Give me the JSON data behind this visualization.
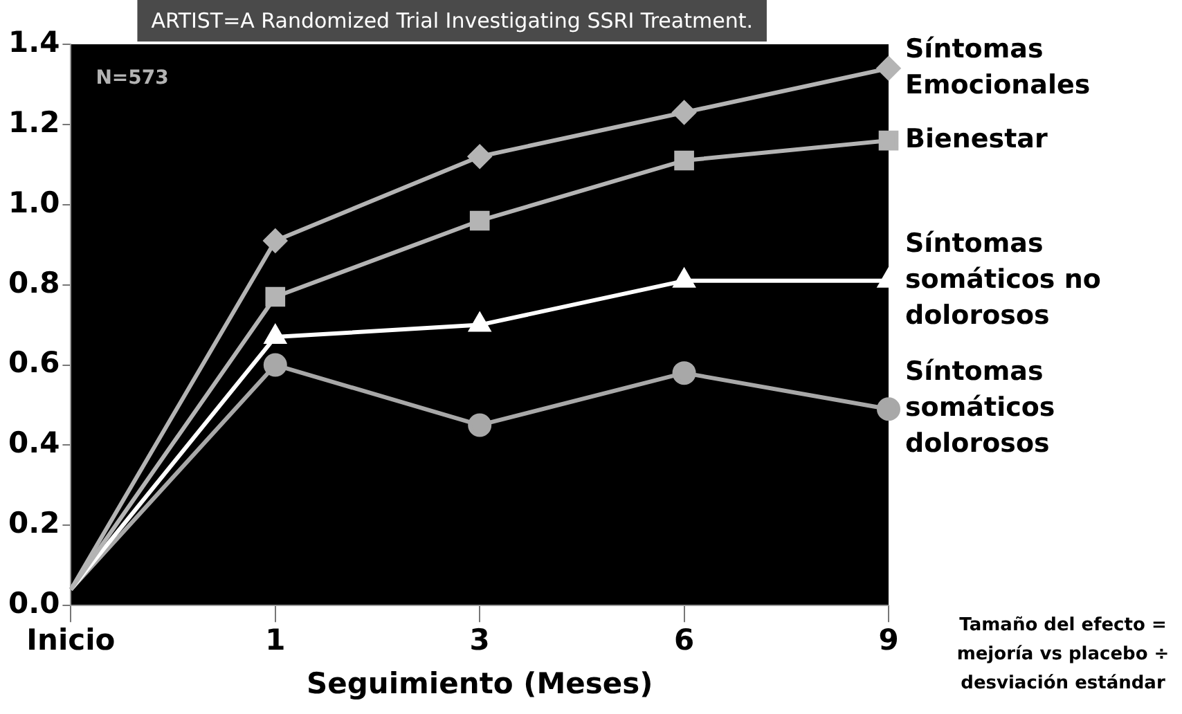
{
  "chart_data": {
    "type": "line",
    "title": "ARTIST=A Randomized Trial Investigating SSRI Treatment.",
    "xlabel": "Seguimiento (Meses)",
    "categories": [
      "Inicio",
      "1",
      "3",
      "6",
      "9"
    ],
    "series": [
      {
        "name": "Síntomas Emocionales",
        "color": "#b4b4b4",
        "marker": "diamond",
        "values": [
          0.04,
          0.91,
          1.12,
          1.23,
          1.34
        ]
      },
      {
        "name": "Bienestar",
        "color": "#b4b4b4",
        "marker": "square",
        "values": [
          0.04,
          0.77,
          0.96,
          1.11,
          1.16
        ]
      },
      {
        "name": "Síntomas somáticos no dolorosos",
        "color": "#ffffff",
        "marker": "triangle",
        "values": [
          0.04,
          0.67,
          0.7,
          0.81,
          0.81
        ]
      },
      {
        "name": "Síntomas somáticos dolorosos",
        "color": "#a8a8a8",
        "marker": "circle",
        "values": [
          0.04,
          0.6,
          0.45,
          0.58,
          0.49
        ]
      }
    ],
    "ylim": [
      0,
      1.4
    ],
    "yticks": [
      {
        "value": 0,
        "label": "0.0"
      },
      0.2,
      0.4,
      0.6,
      0.8,
      {
        "value": 1,
        "label": "1.0"
      },
      1.2,
      1.4
    ],
    "grid": false,
    "legend": false,
    "line_style": "solid",
    "annotations": [
      "N=573",
      "Tamaño del efecto = mejoría vs placebo ÷ desviación estándar"
    ]
  }
}
